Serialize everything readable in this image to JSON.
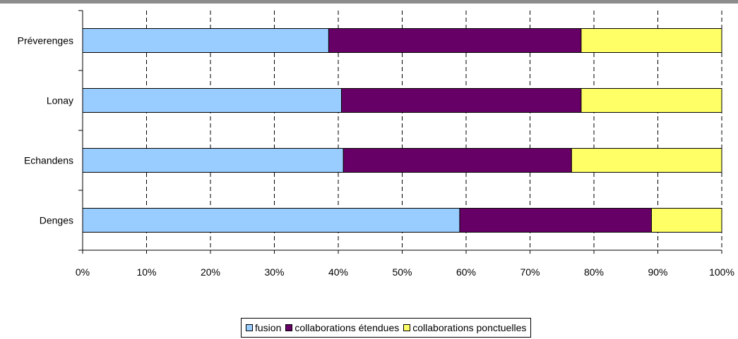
{
  "chart_data": {
    "type": "bar",
    "orientation": "horizontal",
    "stacked": "percent",
    "title": "",
    "xlabel": "",
    "ylabel": "",
    "xlim": [
      0,
      100
    ],
    "x_ticks": [
      "0%",
      "10%",
      "20%",
      "30%",
      "40%",
      "50%",
      "60%",
      "70%",
      "80%",
      "90%",
      "100%"
    ],
    "categories": [
      "Préverenges",
      "Lonay",
      "Echandens",
      "Denges"
    ],
    "series": [
      {
        "name": "fusion",
        "color": "#99ccff",
        "values": [
          38.5,
          40.5,
          40.8,
          59
        ]
      },
      {
        "name": "collaborations étendues",
        "color": "#660066",
        "values": [
          39.5,
          37.5,
          35.7,
          30
        ]
      },
      {
        "name": "collaborations ponctuelles",
        "color": "#ffff66",
        "values": [
          22,
          22,
          23.5,
          11
        ]
      }
    ],
    "grid": {
      "x": true,
      "y": false,
      "style": "dashed"
    },
    "legend_position": "bottom"
  }
}
